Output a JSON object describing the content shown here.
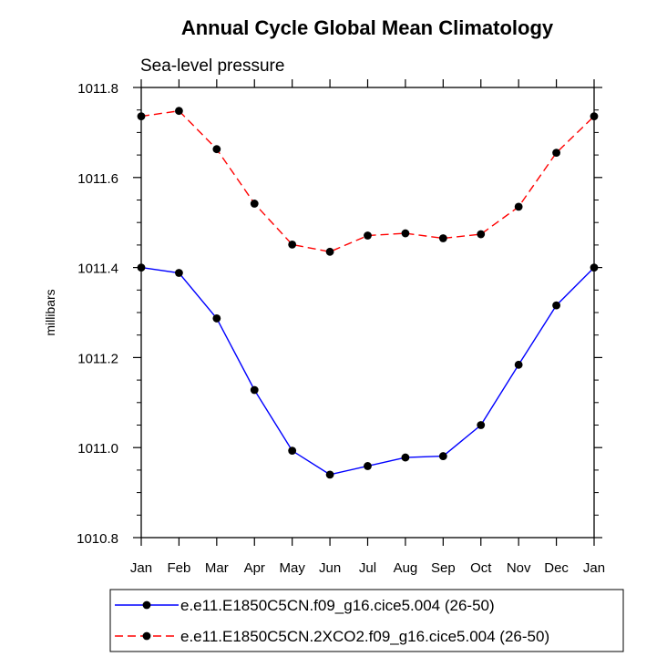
{
  "chart_data": {
    "type": "line",
    "title": "Annual Cycle Global Mean Climatology",
    "subtitle": "Sea-level pressure",
    "xlabel": "",
    "ylabel": "millibars",
    "categories": [
      "Jan",
      "Feb",
      "Mar",
      "Apr",
      "May",
      "Jun",
      "Jul",
      "Aug",
      "Sep",
      "Oct",
      "Nov",
      "Dec",
      "Jan"
    ],
    "ylim": [
      1010.8,
      1011.8
    ],
    "yticks": [
      "1010.8",
      "1011.0",
      "1011.2",
      "1011.4",
      "1011.6",
      "1011.8"
    ],
    "grid": false,
    "legend_position": "bottom",
    "series": [
      {
        "name": "e.e11.E1850C5CN.f09_g16.cice5.004 (26-50)",
        "color": "#0000ff",
        "dash": "solid",
        "marker": "filled-circle",
        "values": [
          1011.4,
          1011.388,
          1011.287,
          1011.128,
          1010.993,
          1010.94,
          1010.959,
          1010.978,
          1010.981,
          1011.05,
          1011.184,
          1011.316,
          1011.4
        ]
      },
      {
        "name": "e.e11.E1850C5CN.2XCO2.f09_g16.cice5.004 (26-50)",
        "color": "#ff0000",
        "dash": "dashed",
        "marker": "filled-circle",
        "values": [
          1011.736,
          1011.748,
          1011.663,
          1011.542,
          1011.451,
          1011.435,
          1011.471,
          1011.476,
          1011.465,
          1011.474,
          1011.535,
          1011.655,
          1011.736
        ]
      }
    ]
  }
}
